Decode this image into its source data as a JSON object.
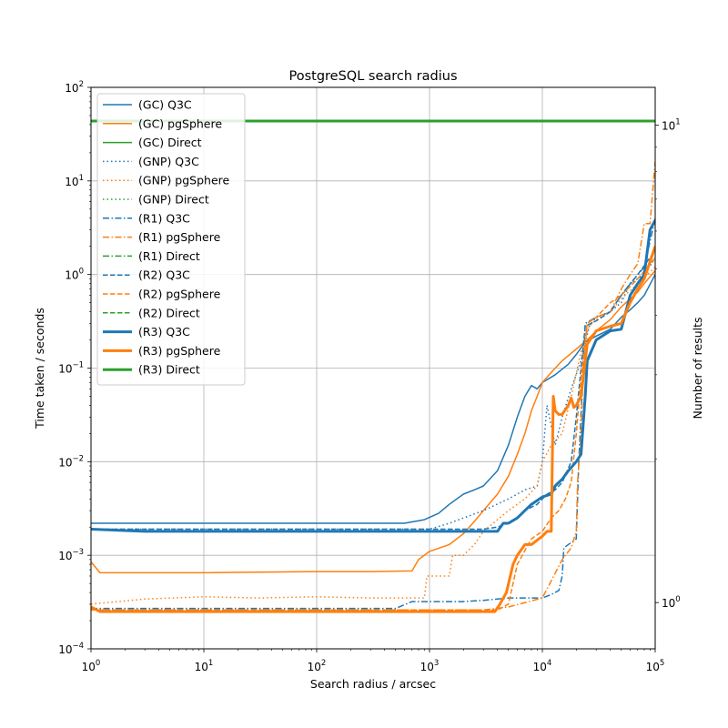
{
  "chart_data": {
    "type": "line",
    "title": "PostgreSQL search radius",
    "xlabel": "Search radius / arcsec",
    "ylabel": "Time taken / seconds",
    "y2label": "Number of results",
    "xscale": "log",
    "yscale": "log",
    "xlim": [
      1,
      100000
    ],
    "ylim": [
      0.0001,
      100
    ],
    "y2lim": [
      0.8,
      12
    ],
    "grid": true,
    "legend_position": "top-left",
    "x_ticks": [
      {
        "value": 1,
        "base": "10",
        "exp": "0"
      },
      {
        "value": 10,
        "base": "10",
        "exp": "1"
      },
      {
        "value": 100,
        "base": "10",
        "exp": "2"
      },
      {
        "value": 1000,
        "base": "10",
        "exp": "3"
      },
      {
        "value": 10000,
        "base": "10",
        "exp": "4"
      },
      {
        "value": 100000,
        "base": "10",
        "exp": "5"
      }
    ],
    "y_ticks": [
      {
        "value": 0.0001,
        "base": "10",
        "exp": "−4"
      },
      {
        "value": 0.001,
        "base": "10",
        "exp": "−3"
      },
      {
        "value": 0.01,
        "base": "10",
        "exp": "−2"
      },
      {
        "value": 0.1,
        "base": "10",
        "exp": "−1"
      },
      {
        "value": 1,
        "base": "10",
        "exp": "0"
      },
      {
        "value": 10,
        "base": "10",
        "exp": "1"
      },
      {
        "value": 100,
        "base": "10",
        "exp": "2"
      }
    ],
    "y2_ticks": [
      {
        "value": 1,
        "base": "10",
        "exp": "0"
      },
      {
        "value": 10,
        "base": "10",
        "exp": "1"
      }
    ],
    "colors": {
      "q3c": "#1f77b4",
      "pgsphere": "#ff7f0e",
      "direct": "#2ca02c",
      "grid": "#b0b0b0"
    },
    "series": [
      {
        "name": "(GC) Q3C",
        "color": "#1f77b4",
        "style": "solid",
        "width": "thin",
        "x": [
          1,
          3,
          10,
          30,
          100,
          300,
          600,
          900,
          1200,
          1500,
          2000,
          2500,
          3000,
          4000,
          5000,
          6000,
          7000,
          8000,
          9000,
          10000,
          13000,
          17000,
          20000,
          24000,
          30000,
          40000,
          50000,
          60000,
          70000,
          80000,
          100000
        ],
        "y": [
          0.0022,
          0.0022,
          0.0022,
          0.0022,
          0.0022,
          0.0022,
          0.0022,
          0.0024,
          0.0028,
          0.0035,
          0.0045,
          0.005,
          0.0055,
          0.008,
          0.015,
          0.03,
          0.05,
          0.065,
          0.06,
          0.07,
          0.085,
          0.11,
          0.14,
          0.19,
          0.22,
          0.26,
          0.35,
          0.42,
          0.5,
          0.6,
          1.0
        ]
      },
      {
        "name": "(GC) pgSphere",
        "color": "#ff7f0e",
        "style": "solid",
        "width": "thin",
        "x": [
          1,
          1.2,
          3,
          10,
          30,
          100,
          300,
          700,
          800,
          1000,
          1500,
          2000,
          2500,
          3000,
          4000,
          5000,
          6000,
          7000,
          8000,
          9000,
          10000,
          12000,
          15000,
          20000,
          25000,
          30000,
          40000,
          50000,
          60000,
          70000,
          80000,
          100000
        ],
        "y": [
          0.00085,
          0.00065,
          0.00065,
          0.00065,
          0.00066,
          0.00067,
          0.00067,
          0.00068,
          0.0009,
          0.0011,
          0.0013,
          0.0017,
          0.0023,
          0.003,
          0.0045,
          0.007,
          0.012,
          0.02,
          0.035,
          0.05,
          0.07,
          0.09,
          0.12,
          0.16,
          0.2,
          0.25,
          0.33,
          0.45,
          0.55,
          0.65,
          0.8,
          1.1
        ]
      },
      {
        "name": "(GC) Direct",
        "color": "#2ca02c",
        "style": "solid",
        "width": "thin",
        "axis": "y2",
        "x": [
          1,
          100000
        ],
        "y": [
          10.2,
          10.2
        ]
      },
      {
        "name": "(GNP) Q3C",
        "color": "#1f77b4",
        "style": "dotted",
        "width": "thin",
        "x": [
          1,
          10,
          100,
          1000,
          1500,
          2000,
          3000,
          5000,
          7000,
          9000,
          10000,
          11000,
          13000,
          15000,
          18000,
          22000,
          26000,
          30000,
          40000,
          50000,
          60000,
          80000,
          100000
        ],
        "y": [
          0.0019,
          0.0019,
          0.0019,
          0.0019,
          0.0022,
          0.0025,
          0.003,
          0.004,
          0.005,
          0.0055,
          0.01,
          0.04,
          0.015,
          0.03,
          0.06,
          0.12,
          0.28,
          0.35,
          0.4,
          0.5,
          0.8,
          1.0,
          1.5
        ]
      },
      {
        "name": "(GNP) pgSphere",
        "color": "#ff7f0e",
        "style": "dotted",
        "width": "thin",
        "x": [
          1,
          3,
          10,
          30,
          100,
          300,
          900,
          950,
          1500,
          1600,
          2000,
          2500,
          3000,
          5000,
          7000,
          9000,
          10000,
          12000,
          15000,
          18000,
          22000,
          26000,
          30000,
          40000,
          50000,
          70000,
          100000
        ],
        "y": [
          0.0003,
          0.00034,
          0.00036,
          0.00035,
          0.00036,
          0.00035,
          0.00035,
          0.0006,
          0.0006,
          0.001,
          0.001,
          0.0013,
          0.0018,
          0.003,
          0.004,
          0.0055,
          0.01,
          0.015,
          0.02,
          0.05,
          0.15,
          0.28,
          0.33,
          0.4,
          0.55,
          0.8,
          1.2
        ]
      },
      {
        "name": "(GNP) Direct",
        "color": "#2ca02c",
        "style": "dotted",
        "width": "thin",
        "axis": "y2",
        "x": [
          1,
          100000
        ],
        "y": [
          10.2,
          10.2
        ]
      },
      {
        "name": "(R1) Q3C",
        "color": "#1f77b4",
        "style": "dashdot",
        "width": "thin",
        "x": [
          1,
          10,
          100,
          500,
          700,
          1000,
          2000,
          3000,
          5000,
          7000,
          10000,
          12000,
          14000,
          15000,
          15500,
          20000,
          21000,
          23000,
          24000,
          30000,
          40000,
          50000,
          60000,
          80000,
          100000
        ],
        "y": [
          0.00027,
          0.00027,
          0.00027,
          0.00027,
          0.00032,
          0.00032,
          0.00032,
          0.00033,
          0.00035,
          0.00035,
          0.00035,
          0.00038,
          0.00042,
          0.0006,
          0.0012,
          0.0015,
          0.01,
          0.1,
          0.3,
          0.35,
          0.4,
          0.6,
          0.8,
          1.2,
          4.0
        ]
      },
      {
        "name": "(R1) pgSphere",
        "color": "#ff7f0e",
        "style": "dashdot",
        "width": "thin",
        "x": [
          1,
          10,
          100,
          1000,
          3000,
          5000,
          10000,
          15000,
          18000,
          20000,
          20500,
          22000,
          23000,
          25000,
          30000,
          40000,
          50000,
          60000,
          70000,
          80000,
          90000,
          100000
        ],
        "y": [
          0.00026,
          0.00026,
          0.00026,
          0.00026,
          0.00026,
          0.00028,
          0.00035,
          0.0009,
          0.0012,
          0.0018,
          0.006,
          0.02,
          0.1,
          0.3,
          0.35,
          0.4,
          0.7,
          1.0,
          1.3,
          3.5,
          3.5,
          16.0
        ]
      },
      {
        "name": "(R1) Direct",
        "color": "#2ca02c",
        "style": "dashdot",
        "width": "thin",
        "axis": "y2",
        "x": [
          1,
          100000
        ],
        "y": [
          10.2,
          10.2
        ]
      },
      {
        "name": "(R2) Q3C",
        "color": "#1f77b4",
        "style": "dashed",
        "width": "thin",
        "x": [
          1,
          10,
          100,
          1000,
          3000,
          4000,
          5000,
          6000,
          7000,
          9000,
          11000,
          13000,
          15000,
          18000,
          20000,
          22000,
          24000,
          30000,
          40000,
          50000,
          70000,
          100000
        ],
        "y": [
          0.0019,
          0.0019,
          0.0019,
          0.0019,
          0.0019,
          0.002,
          0.0022,
          0.0025,
          0.003,
          0.0035,
          0.0045,
          0.005,
          0.006,
          0.01,
          0.03,
          0.1,
          0.28,
          0.32,
          0.4,
          0.6,
          1.0,
          1.8
        ]
      },
      {
        "name": "(R2) pgSphere",
        "color": "#ff7f0e",
        "style": "dashed",
        "width": "thin",
        "x": [
          1,
          10,
          100,
          1000,
          3000,
          4000,
          5000,
          6000,
          8000,
          10000,
          12000,
          14000,
          16000,
          18000,
          20000,
          22000,
          25000,
          30000,
          40000,
          50000,
          70000,
          100000
        ],
        "y": [
          0.00026,
          0.00026,
          0.00026,
          0.00026,
          0.00026,
          0.00026,
          0.0003,
          0.0008,
          0.0015,
          0.0018,
          0.0025,
          0.003,
          0.004,
          0.006,
          0.02,
          0.08,
          0.3,
          0.35,
          0.5,
          0.6,
          0.9,
          1.5
        ]
      },
      {
        "name": "(R2) Direct",
        "color": "#2ca02c",
        "style": "dashed",
        "width": "thin",
        "axis": "y2",
        "x": [
          1,
          100000
        ],
        "y": [
          10.2,
          10.2
        ]
      },
      {
        "name": "(R3) Q3C",
        "color": "#1f77b4",
        "style": "solid",
        "width": "thick",
        "x": [
          1,
          3,
          10,
          30,
          100,
          300,
          1000,
          2000,
          3000,
          4000,
          4500,
          5000,
          6000,
          7000,
          8000,
          10000,
          12000,
          13000,
          14000,
          15000,
          17000,
          20000,
          22000,
          24000,
          25000,
          30000,
          40000,
          50000,
          60000,
          70000,
          80000,
          90000,
          100000
        ],
        "y": [
          0.0019,
          0.0018,
          0.0018,
          0.0018,
          0.0018,
          0.0018,
          0.0018,
          0.0018,
          0.0018,
          0.0018,
          0.0022,
          0.0022,
          0.0025,
          0.003,
          0.0035,
          0.0042,
          0.0045,
          0.0055,
          0.006,
          0.0065,
          0.008,
          0.01,
          0.012,
          0.05,
          0.12,
          0.2,
          0.25,
          0.26,
          0.6,
          0.8,
          1.0,
          3.0,
          3.8
        ]
      },
      {
        "name": "(R3) pgSphere",
        "color": "#ff7f0e",
        "style": "solid",
        "width": "thick",
        "x": [
          1,
          1.2,
          3,
          10,
          30,
          100,
          300,
          1000,
          2000,
          3000,
          3800,
          4200,
          4800,
          5500,
          6000,
          7000,
          8000,
          10000,
          11000,
          11500,
          12000,
          12500,
          13000,
          14000,
          15000,
          17000,
          18000,
          19000,
          20000,
          22000,
          25000,
          30000,
          40000,
          50000,
          60000,
          70000,
          80000,
          100000
        ],
        "y": [
          0.00028,
          0.00025,
          0.00025,
          0.00025,
          0.00025,
          0.00025,
          0.00025,
          0.00025,
          0.00025,
          0.00025,
          0.00025,
          0.0003,
          0.0004,
          0.0008,
          0.001,
          0.0013,
          0.0013,
          0.0016,
          0.0018,
          0.0018,
          0.0018,
          0.05,
          0.035,
          0.032,
          0.032,
          0.04,
          0.048,
          0.038,
          0.04,
          0.05,
          0.18,
          0.25,
          0.28,
          0.3,
          0.5,
          0.7,
          0.9,
          2.0
        ]
      },
      {
        "name": "(R3) Direct",
        "color": "#2ca02c",
        "style": "solid",
        "width": "thick",
        "axis": "y2",
        "x": [
          1,
          100000
        ],
        "y": [
          10.2,
          10.2
        ]
      }
    ]
  }
}
